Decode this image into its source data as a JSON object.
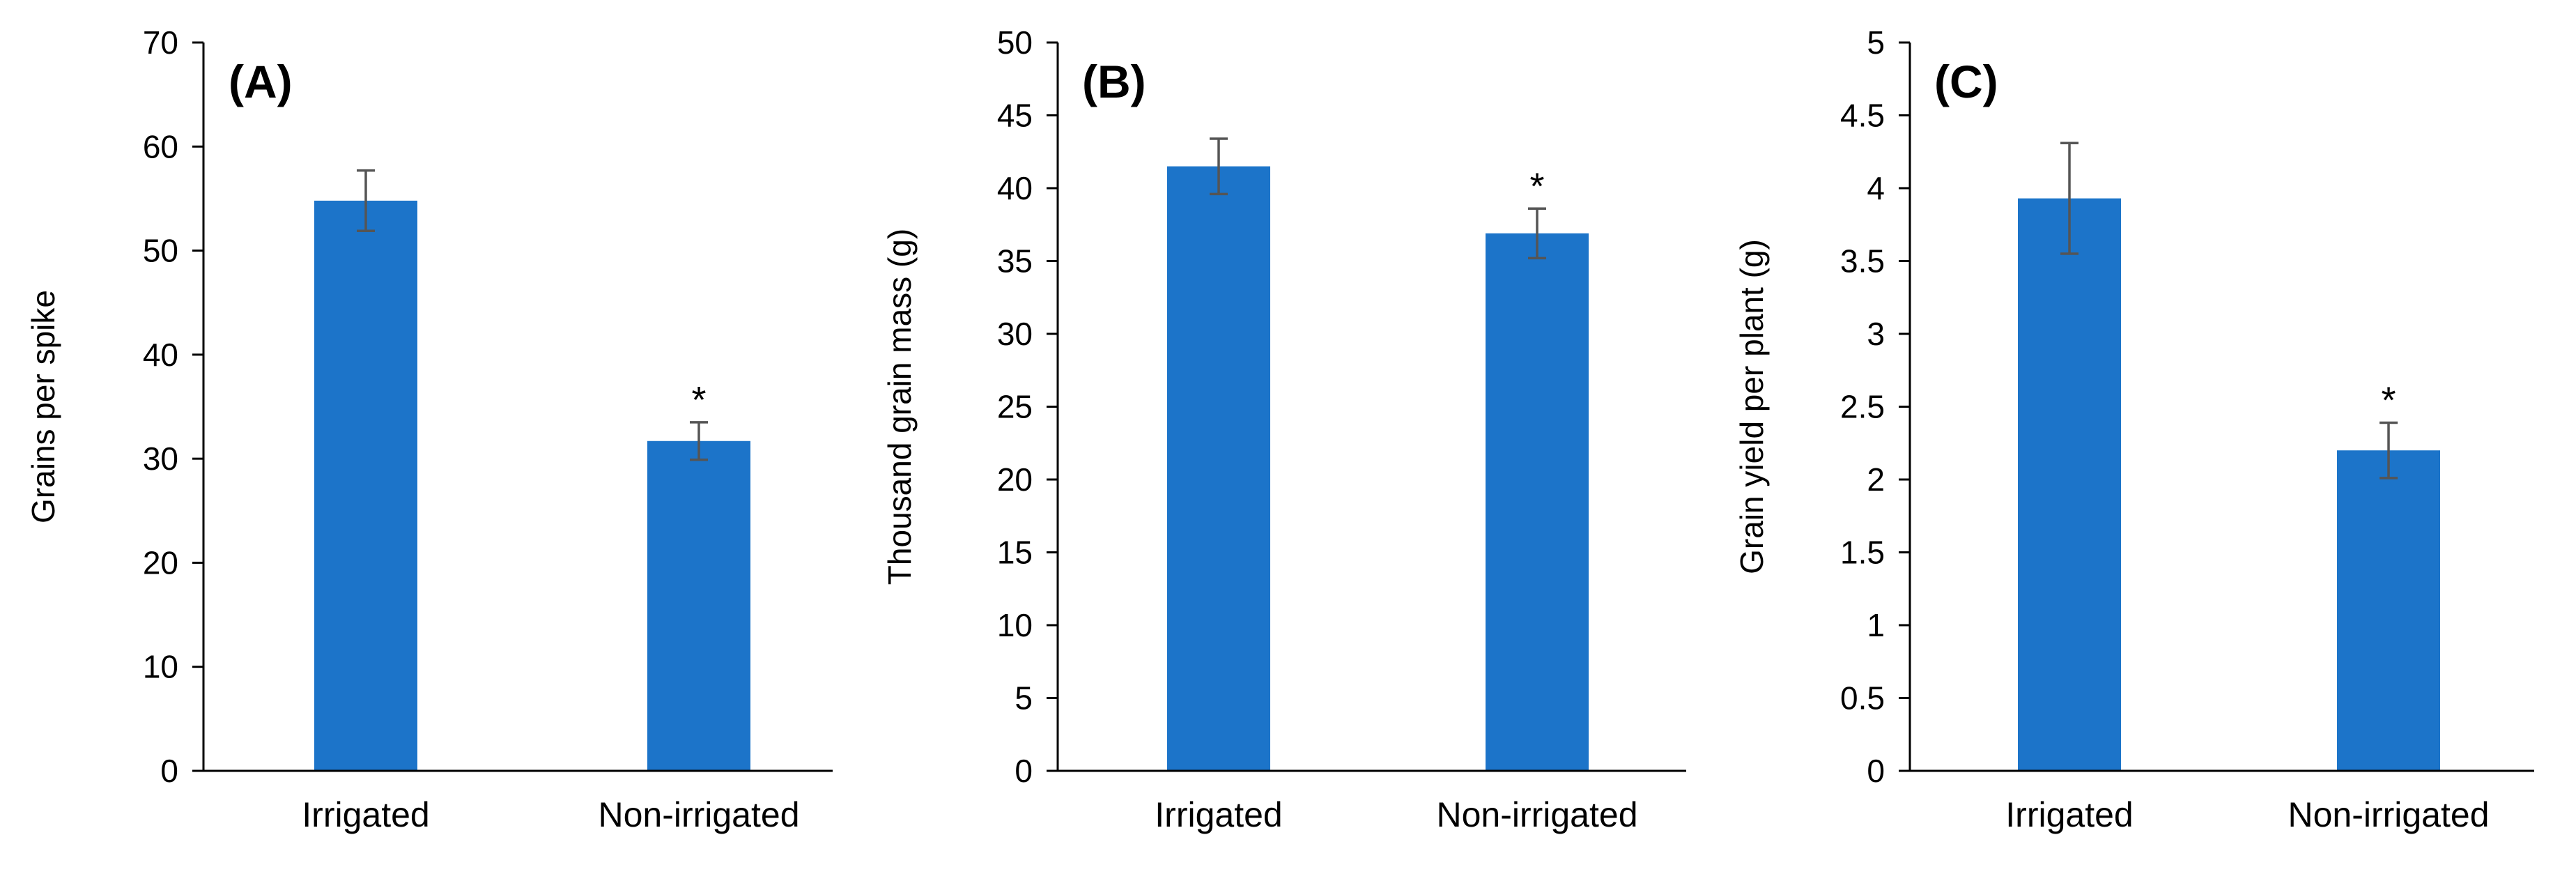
{
  "colors": {
    "bar": "#1c74c9",
    "axis": "#000000",
    "error_bar": "#555555"
  },
  "chart_data": [
    {
      "type": "bar",
      "panel_label": "(A)",
      "categories": [
        "Irrigated",
        "Non-irrigated"
      ],
      "values": [
        54.8,
        31.7
      ],
      "errors": [
        2.9,
        1.8
      ],
      "significance": [
        "",
        "*"
      ],
      "ylabel": "Grains per spike",
      "xlabel": "",
      "ylim": [
        0,
        70
      ],
      "yticks": [
        "0",
        "10",
        "20",
        "30",
        "40",
        "50",
        "60",
        "70"
      ],
      "grid": false
    },
    {
      "type": "bar",
      "panel_label": "(B)",
      "categories": [
        "Irrigated",
        "Non-irrigated"
      ],
      "values": [
        41.5,
        36.9
      ],
      "errors": [
        1.9,
        1.7
      ],
      "significance": [
        "",
        "*"
      ],
      "ylabel": "Thousand grain mass (g)",
      "xlabel": "",
      "ylim": [
        0,
        50
      ],
      "yticks": [
        "0",
        "5",
        "10",
        "15",
        "20",
        "25",
        "30",
        "35",
        "40",
        "45",
        "50"
      ],
      "grid": false
    },
    {
      "type": "bar",
      "panel_label": "(C)",
      "categories": [
        "Irrigated",
        "Non-irrigated"
      ],
      "values": [
        3.93,
        2.2
      ],
      "errors": [
        0.38,
        0.19
      ],
      "significance": [
        "",
        "*"
      ],
      "ylabel": "Grain yield per plant (g)",
      "xlabel": "",
      "ylim": [
        0,
        5
      ],
      "yticks": [
        "0",
        "0.5",
        "1",
        "1.5",
        "2",
        "2.5",
        "3",
        "3.5",
        "4",
        "4.5",
        "5"
      ],
      "grid": false
    }
  ]
}
